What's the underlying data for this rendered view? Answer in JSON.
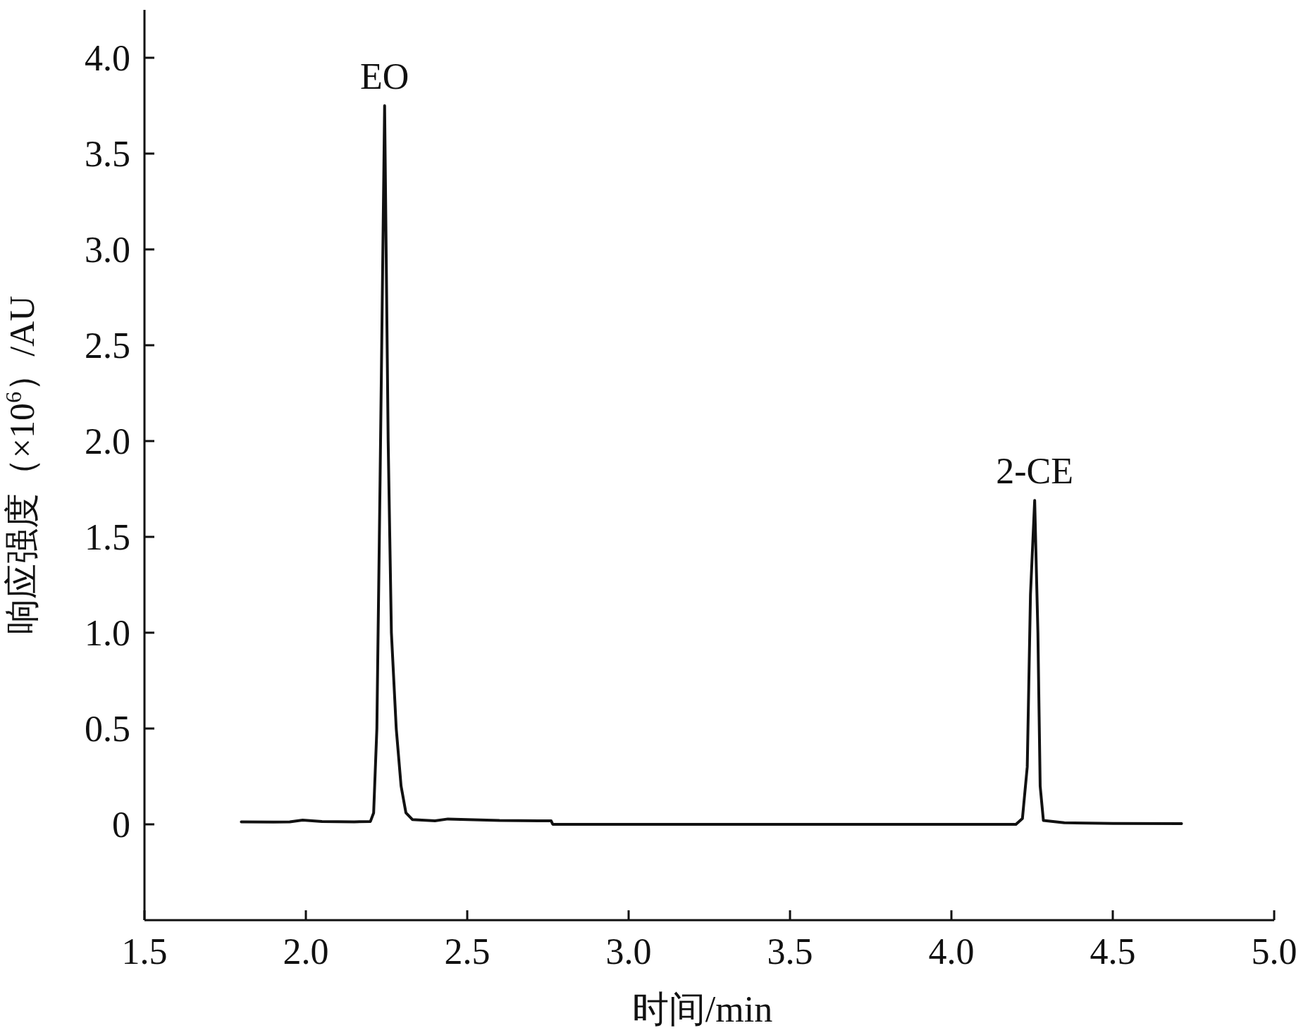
{
  "chart_data": {
    "type": "line",
    "xlabel": "时间/min",
    "ylabel": "响应强度（×10$^{6}$）/AU",
    "color": "#111111",
    "x": [
      1.8,
      1.9,
      1.95,
      1.99,
      2.05,
      2.15,
      2.2,
      2.21,
      2.22,
      2.23,
      2.244,
      2.255,
      2.265,
      2.28,
      2.295,
      2.31,
      2.33,
      2.4,
      2.44,
      2.5,
      2.6,
      2.76,
      2.765,
      3.0,
      3.5,
      4.0,
      4.2,
      4.22,
      4.235,
      4.245,
      4.258,
      4.268,
      4.275,
      4.285,
      4.35,
      4.5,
      4.713
    ],
    "values": [
      0.013,
      0.012,
      0.013,
      0.022,
      0.015,
      0.013,
      0.015,
      0.06,
      0.5,
      1.8,
      3.75,
      2.0,
      1.0,
      0.5,
      0.2,
      0.06,
      0.025,
      0.018,
      0.028,
      0.025,
      0.02,
      0.018,
      0.0,
      0.0,
      0.0,
      0.0,
      0.0,
      0.03,
      0.3,
      1.2,
      1.69,
      1.0,
      0.2,
      0.02,
      0.008,
      0.005,
      0.004
    ],
    "xlim": [
      1.5,
      5.0
    ],
    "ylim": [
      -0.5,
      4.25
    ],
    "xticks": [
      1.5,
      {
        "value": 2,
        "label": "2.0"
      },
      2.5,
      {
        "value": 3,
        "label": "3.0"
      },
      3.5,
      {
        "value": 4,
        "label": "4.0"
      },
      4.5,
      {
        "value": 5,
        "label": "5.0"
      }
    ],
    "yticks": [
      0,
      0.5,
      {
        "value": 1,
        "label": "1.0"
      },
      1.5,
      {
        "value": 2,
        "label": "2.0"
      },
      2.5,
      {
        "value": 3,
        "label": "3.0"
      },
      3.5,
      {
        "value": 4,
        "label": "4.0"
      }
    ],
    "annotations": [
      {
        "text": "EO",
        "x": 2.244,
        "y": 3.75
      },
      {
        "text": "2-CE",
        "x": 4.258,
        "y": 1.69
      }
    ]
  }
}
